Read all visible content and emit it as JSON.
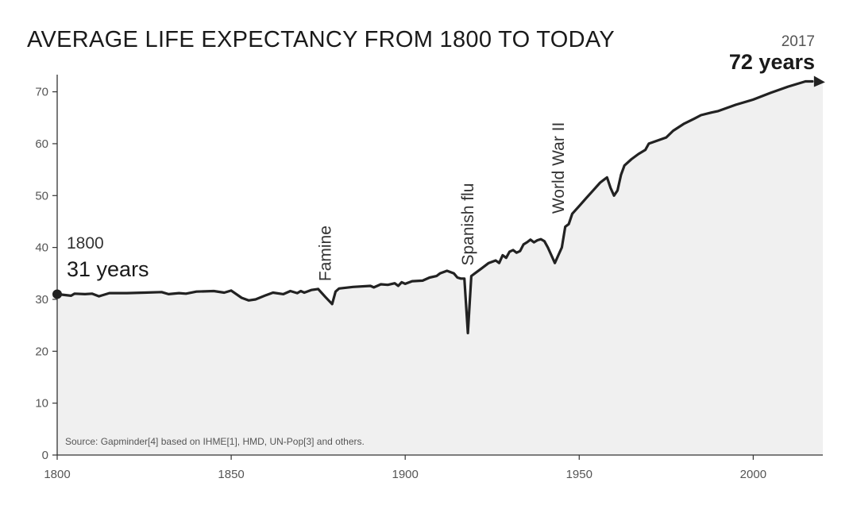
{
  "chart_data": {
    "type": "area",
    "title": "AVERAGE LIFE EXPECTANCY FROM 1800 TO TODAY",
    "xlabel": "",
    "ylabel": "",
    "xlim": [
      1800,
      2020
    ],
    "ylim": [
      0,
      73
    ],
    "x_ticks": [
      1800,
      1850,
      1900,
      1950,
      2000
    ],
    "x_tick_labels": [
      "1800",
      "1850",
      "1900",
      "1950",
      "2000"
    ],
    "y_ticks": [
      0,
      10,
      20,
      30,
      40,
      50,
      60,
      70
    ],
    "y_tick_labels": [
      "0",
      "10",
      "20",
      "30",
      "40",
      "50",
      "60",
      "70"
    ],
    "grid": false,
    "series": [
      {
        "x": [
          1800,
          1804,
          1805,
          1808,
          1810,
          1812,
          1815,
          1820,
          1825,
          1830,
          1832,
          1835,
          1837,
          1840,
          1845,
          1848,
          1850,
          1853,
          1855,
          1857,
          1860,
          1862,
          1865,
          1867,
          1869,
          1870,
          1871,
          1873,
          1875,
          1877,
          1878,
          1879,
          1880,
          1881,
          1885,
          1890,
          1891,
          1893,
          1895,
          1897,
          1898,
          1899,
          1900,
          1902,
          1905,
          1907,
          1909,
          1910,
          1912,
          1914,
          1915,
          1916,
          1917,
          1918,
          1919,
          1920,
          1922,
          1924,
          1926,
          1927,
          1928,
          1929,
          1930,
          1931,
          1932,
          1933,
          1934,
          1935,
          1936,
          1937,
          1938,
          1939,
          1940,
          1941,
          1942,
          1943,
          1944,
          1945,
          1946,
          1947,
          1948,
          1950,
          1952,
          1954,
          1956,
          1957,
          1958,
          1959,
          1960,
          1961,
          1962,
          1963,
          1965,
          1967,
          1969,
          1970,
          1972,
          1975,
          1977,
          1980,
          1983,
          1985,
          1988,
          1990,
          1995,
          2000,
          2005,
          2010,
          2015,
          2017
        ],
        "values": [
          31,
          30.7,
          31.1,
          31,
          31.1,
          30.6,
          31.2,
          31.2,
          31.3,
          31.4,
          31.0,
          31.2,
          31.1,
          31.5,
          31.6,
          31.3,
          31.7,
          30.3,
          29.8,
          30.0,
          30.8,
          31.3,
          31.0,
          31.6,
          31.2,
          31.6,
          31.3,
          31.8,
          32.0,
          30.5,
          29.8,
          29.1,
          31.5,
          32.1,
          32.4,
          32.6,
          32.3,
          32.9,
          32.8,
          33.1,
          32.6,
          33.3,
          33.0,
          33.5,
          33.6,
          34.2,
          34.5,
          35.0,
          35.5,
          35.0,
          34.2,
          34.0,
          34.0,
          23.5,
          34.5,
          35.0,
          36.0,
          37.0,
          37.5,
          37.0,
          38.5,
          38.0,
          39.2,
          39.5,
          39.0,
          39.3,
          40.6,
          41.0,
          41.5,
          41.0,
          41.4,
          41.6,
          41.2,
          40.0,
          38.5,
          37.0,
          38.5,
          40.0,
          44.0,
          44.5,
          46.5,
          48.0,
          49.5,
          51.0,
          52.5,
          53.0,
          53.5,
          51.5,
          50.0,
          51.0,
          54.0,
          55.8,
          57.0,
          58.0,
          58.8,
          60.0,
          60.5,
          61.2,
          62.5,
          63.8,
          64.8,
          65.5,
          66.0,
          66.3,
          67.5,
          68.5,
          69.8,
          71.0,
          72.0,
          72.0
        ]
      }
    ],
    "annotations": [
      {
        "text": "Famine",
        "x": 1877,
        "y": 33.5
      },
      {
        "text": "Spanish flu",
        "x": 1918,
        "y": 36.5
      },
      {
        "text": "World War II",
        "x": 1944,
        "y": 46.5
      }
    ],
    "start_callout": {
      "year": "1800",
      "value": "31 years"
    },
    "end_callout": {
      "year": "2017",
      "value": "72 years"
    },
    "source": "Source: Gapminder[4] based on IHME[1], HMD, UN-Pop[3] and others.",
    "colors": {
      "line": "#222222",
      "fill": "#f0f0f0",
      "axis": "#333333"
    }
  }
}
